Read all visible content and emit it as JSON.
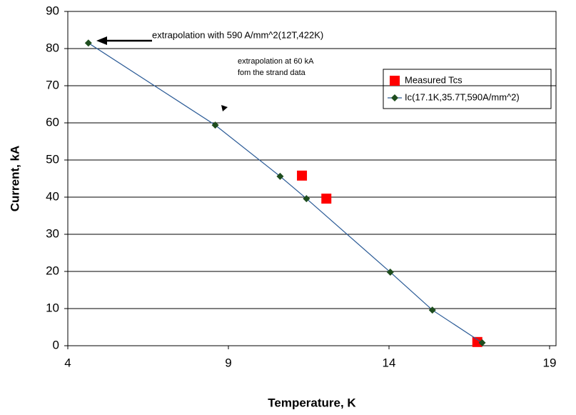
{
  "chart_data": {
    "type": "scatter",
    "xlabel": "Temperature, K",
    "ylabel": "Current, kA",
    "annotations": [
      "extrapolation with 590 A/mm^2(12T,422K)",
      "extrapolation at 60 kA",
      "fom the strand data"
    ],
    "xlim": [
      4,
      19.2
    ],
    "xticks": [
      4,
      9,
      14,
      19
    ],
    "ylim": [
      0,
      90
    ],
    "yticks": [
      0,
      10,
      20,
      30,
      40,
      50,
      60,
      70,
      80,
      90
    ],
    "grid": true,
    "legend": "upper right",
    "series": [
      {
        "name": "Measured Tcs",
        "color": "#ff0000",
        "marker": "square",
        "line": false,
        "x": [
          11.29,
          12.05,
          16.75
        ],
        "values": [
          45.8,
          39.6,
          1.0
        ]
      },
      {
        "name": "Ic(17.1K,35.7T,590A/mm^2)",
        "color": "#2a5a96",
        "marker_color": "#1e4d1e",
        "marker": "diamond",
        "line": true,
        "x": [
          4.64,
          8.59,
          10.61,
          11.43,
          14.04,
          15.35,
          16.9
        ],
        "values": [
          81.5,
          59.4,
          45.6,
          39.6,
          19.8,
          9.6,
          0.8
        ]
      }
    ]
  }
}
